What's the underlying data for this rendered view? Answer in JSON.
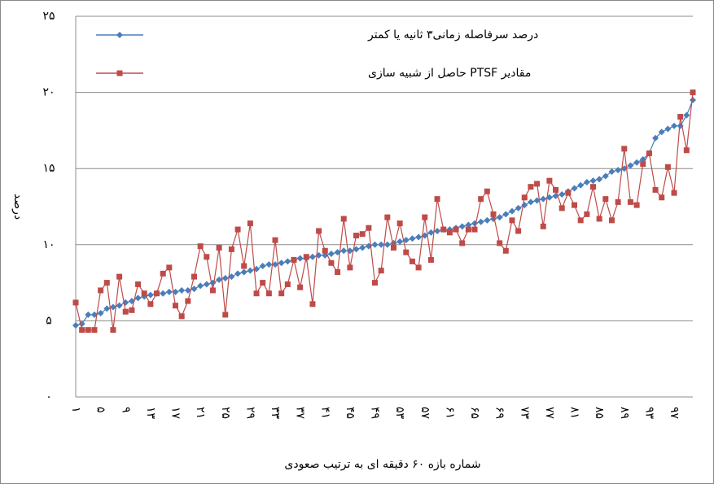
{
  "chart_data": {
    "type": "line",
    "y_label": "درصد",
    "x_label": "شماره بازه ۶۰ دقیقه ای به ترتیب صعودی",
    "categories": [
      "۱",
      null,
      null,
      null,
      "۵",
      null,
      null,
      null,
      "۹",
      null,
      null,
      null,
      "۱۳",
      null,
      null,
      null,
      "۱۷",
      null,
      null,
      null,
      "۲۱",
      null,
      null,
      null,
      "۲۵",
      null,
      null,
      null,
      "۲۹",
      null,
      null,
      null,
      "۳۳",
      null,
      null,
      null,
      "۳۷",
      null,
      null,
      null,
      "۴۱",
      null,
      null,
      null,
      "۴۵",
      null,
      null,
      null,
      "۴۹",
      null,
      null,
      null,
      "۵۳",
      null,
      null,
      null,
      "۵۷",
      null,
      null,
      null,
      "۶۱",
      null,
      null,
      null,
      "۶۵",
      null,
      null,
      null,
      "۶۹",
      null,
      null,
      null,
      "۷۳",
      null,
      null,
      null,
      "۷۷",
      null,
      null,
      null,
      "۸۱",
      null,
      null,
      null,
      "۸۵",
      null,
      null,
      null,
      "۸۹",
      null,
      null,
      null,
      "۹۳",
      null,
      null,
      null,
      "۹۷",
      null,
      null,
      null
    ],
    "series": [
      {
        "name": "درصد سرفاصله زمانی۳ ثانیه یا کمتر",
        "color": "#4a7ebb",
        "marker": "diamond",
        "values": [
          4.7,
          4.8,
          5.4,
          5.4,
          5.5,
          5.8,
          5.9,
          6.0,
          6.2,
          6.3,
          6.5,
          6.6,
          6.7,
          6.8,
          6.8,
          6.9,
          6.9,
          7.0,
          7.0,
          7.1,
          7.3,
          7.4,
          7.5,
          7.7,
          7.8,
          7.9,
          8.1,
          8.2,
          8.3,
          8.4,
          8.6,
          8.7,
          8.7,
          8.8,
          8.9,
          9.0,
          9.1,
          9.1,
          9.2,
          9.3,
          9.3,
          9.4,
          9.5,
          9.6,
          9.6,
          9.7,
          9.8,
          9.9,
          10.0,
          10.0,
          10.0,
          10.1,
          10.2,
          10.3,
          10.4,
          10.5,
          10.6,
          10.8,
          10.9,
          11.0,
          11.0,
          11.1,
          11.2,
          11.3,
          11.4,
          11.5,
          11.6,
          11.7,
          11.8,
          12.0,
          12.2,
          12.4,
          12.6,
          12.8,
          12.9,
          13.0,
          13.1,
          13.2,
          13.3,
          13.5,
          13.7,
          13.9,
          14.1,
          14.2,
          14.3,
          14.5,
          14.8,
          14.9,
          15.0,
          15.2,
          15.4,
          15.6,
          16.0,
          17.0,
          17.4,
          17.6,
          17.8,
          17.8,
          18.5,
          19.5
        ]
      },
      {
        "name": "مقادیر PTSF حاصل از شبیه سازی",
        "color": "#be4b48",
        "marker": "square",
        "values": [
          6.2,
          4.4,
          4.4,
          4.4,
          7.0,
          7.5,
          4.4,
          7.9,
          5.6,
          5.7,
          7.4,
          6.8,
          6.1,
          6.8,
          8.1,
          8.5,
          6.0,
          5.3,
          6.3,
          7.9,
          9.9,
          9.2,
          7.0,
          9.8,
          5.4,
          9.7,
          11.0,
          8.6,
          11.4,
          6.8,
          7.5,
          6.8,
          10.3,
          6.8,
          7.4,
          9.0,
          7.2,
          9.2,
          6.1,
          10.9,
          9.6,
          8.8,
          8.2,
          11.7,
          8.5,
          10.6,
          10.7,
          11.1,
          7.5,
          8.3,
          11.8,
          9.8,
          11.4,
          9.5,
          8.9,
          8.5,
          11.8,
          9.0,
          13.0,
          11.0,
          10.8,
          11.0,
          10.1,
          11.0,
          11.0,
          13.0,
          13.5,
          12.0,
          10.1,
          9.6,
          11.6,
          10.9,
          13.1,
          13.8,
          14.0,
          11.2,
          14.2,
          13.6,
          12.4,
          13.4,
          12.6,
          11.6,
          12.0,
          13.8,
          11.7,
          13.0,
          11.6,
          12.8,
          16.3,
          12.8,
          12.6,
          15.3,
          16.0,
          13.6,
          13.1,
          15.1,
          13.4,
          18.4,
          16.2,
          20.0
        ]
      }
    ],
    "ylim": [
      0,
      25
    ],
    "yticks": [
      {
        "value": 0,
        "label": "۰"
      },
      {
        "value": 5,
        "label": "۵"
      },
      {
        "value": 10,
        "label": "۱۰"
      },
      {
        "value": 15,
        "label": "۱۵"
      },
      {
        "value": 20,
        "label": "۲۰"
      },
      {
        "value": 25,
        "label": "۲۵"
      }
    ],
    "grid": true,
    "legend": "top-left"
  }
}
